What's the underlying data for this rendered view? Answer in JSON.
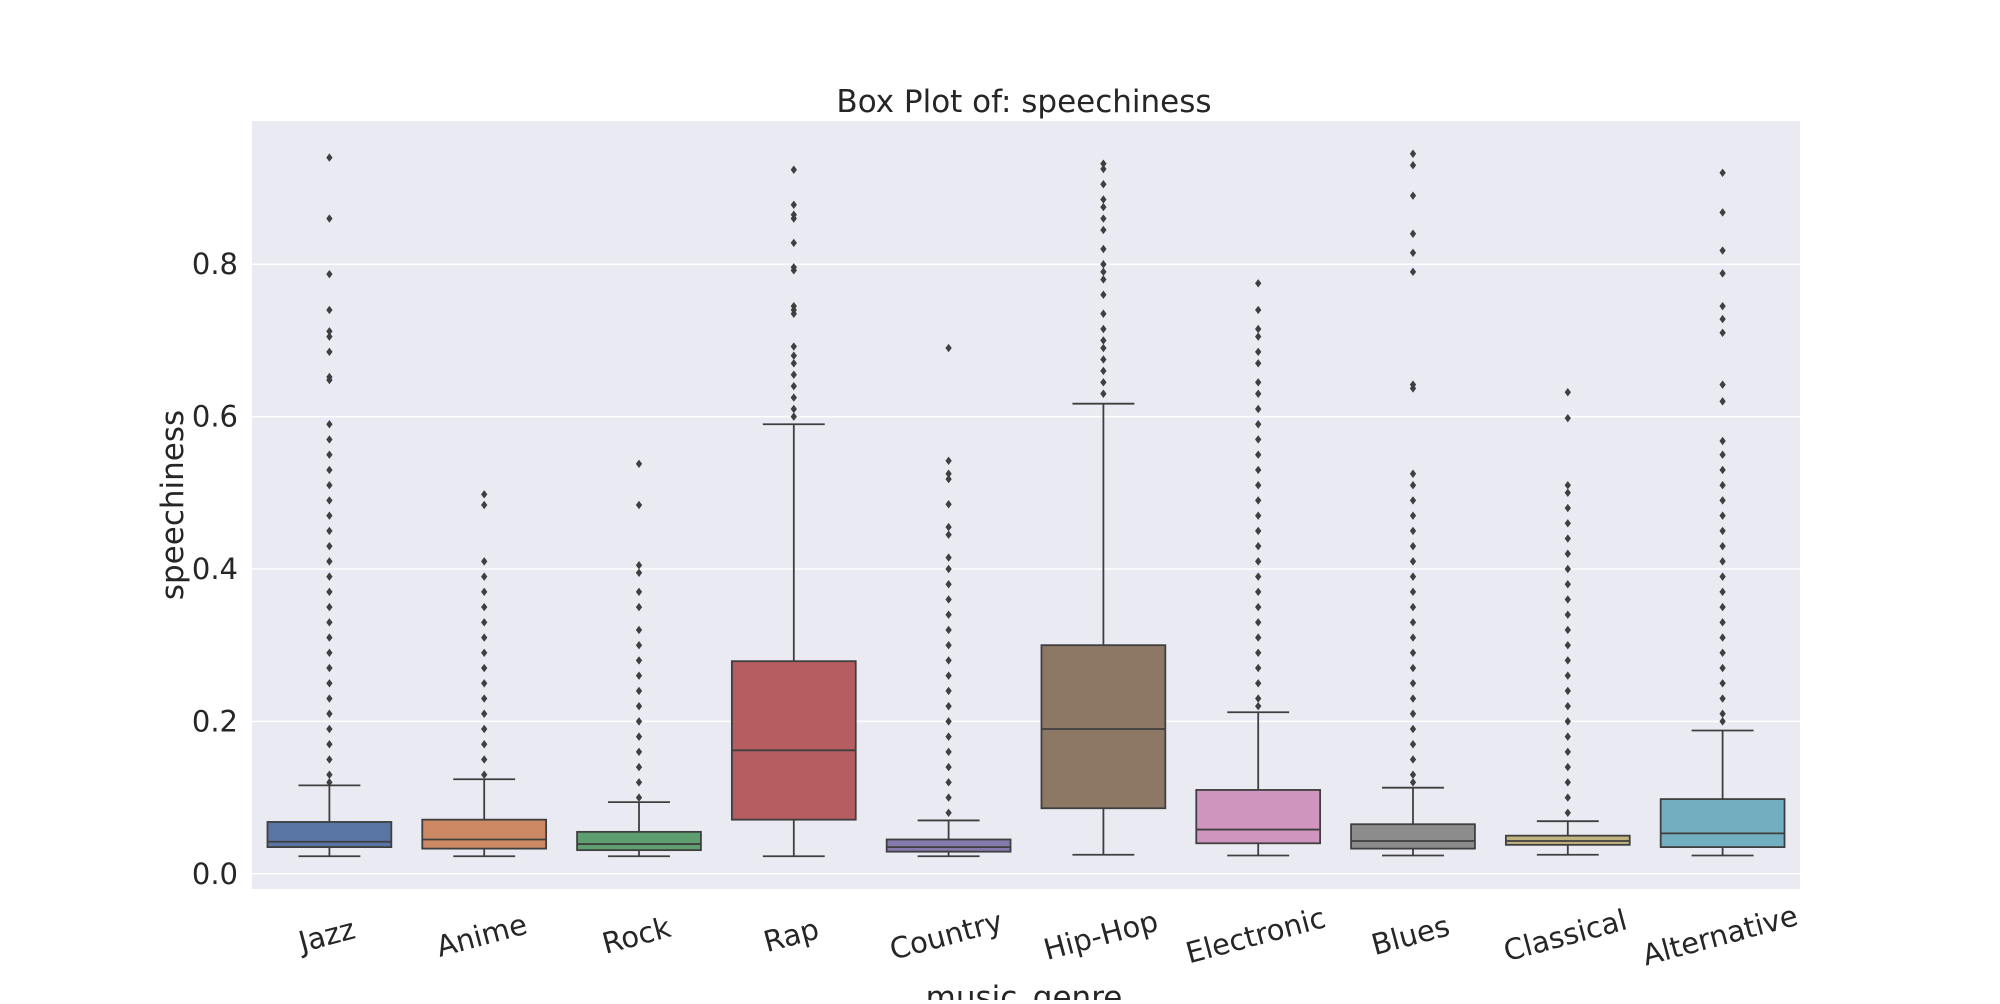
{
  "chart_data": {
    "type": "box",
    "title": "Box Plot of: speechiness",
    "xlabel": "music_genre",
    "ylabel": "speechiness",
    "ylim": [
      -0.02,
      0.988
    ],
    "yticks": [
      0.0,
      0.2,
      0.4,
      0.6,
      0.8
    ],
    "ytick_labels": [
      "0.0",
      "0.2",
      "0.4",
      "0.6",
      "0.8"
    ],
    "grid": true,
    "categories": [
      "Jazz",
      "Anime",
      "Rock",
      "Rap",
      "Country",
      "Hip-Hop",
      "Electronic",
      "Blues",
      "Classical",
      "Alternative"
    ],
    "colors": [
      "#5975a4",
      "#cc8963",
      "#5f9e6e",
      "#b55d60",
      "#857aab",
      "#8d7866",
      "#d095bf",
      "#8c8c8c",
      "#c1b37f",
      "#71aec0"
    ],
    "boxes": [
      {
        "min": 0.023,
        "q1": 0.035,
        "median": 0.042,
        "q3": 0.068,
        "max": 0.116,
        "outliers": [
          0.94,
          0.86,
          0.787,
          0.74,
          0.712,
          0.705,
          0.685,
          0.652,
          0.648,
          0.59,
          0.57,
          0.55,
          0.53,
          0.51,
          0.49,
          0.47,
          0.45,
          0.43,
          0.41,
          0.39,
          0.37,
          0.35,
          0.33,
          0.31,
          0.29,
          0.27,
          0.25,
          0.23,
          0.21,
          0.19,
          0.17,
          0.15,
          0.13,
          0.12
        ]
      },
      {
        "min": 0.023,
        "q1": 0.033,
        "median": 0.045,
        "q3": 0.071,
        "max": 0.124,
        "outliers": [
          0.498,
          0.484,
          0.41,
          0.39,
          0.37,
          0.35,
          0.33,
          0.31,
          0.29,
          0.27,
          0.25,
          0.23,
          0.21,
          0.19,
          0.17,
          0.15,
          0.13
        ]
      },
      {
        "min": 0.023,
        "q1": 0.031,
        "median": 0.039,
        "q3": 0.055,
        "max": 0.094,
        "outliers": [
          0.538,
          0.484,
          0.405,
          0.395,
          0.37,
          0.35,
          0.32,
          0.3,
          0.28,
          0.26,
          0.24,
          0.22,
          0.2,
          0.18,
          0.16,
          0.14,
          0.12,
          0.1
        ]
      },
      {
        "min": 0.023,
        "q1": 0.071,
        "median": 0.162,
        "q3": 0.279,
        "max": 0.59,
        "outliers": [
          0.924,
          0.878,
          0.865,
          0.86,
          0.828,
          0.796,
          0.792,
          0.745,
          0.74,
          0.735,
          0.692,
          0.68,
          0.67,
          0.655,
          0.64,
          0.625,
          0.61,
          0.6
        ]
      },
      {
        "min": 0.023,
        "q1": 0.029,
        "median": 0.035,
        "q3": 0.045,
        "max": 0.07,
        "outliers": [
          0.69,
          0.542,
          0.525,
          0.518,
          0.485,
          0.455,
          0.445,
          0.415,
          0.4,
          0.38,
          0.36,
          0.34,
          0.32,
          0.3,
          0.28,
          0.26,
          0.24,
          0.22,
          0.2,
          0.18,
          0.16,
          0.14,
          0.12,
          0.1,
          0.08
        ]
      },
      {
        "min": 0.025,
        "q1": 0.086,
        "median": 0.19,
        "q3": 0.3,
        "max": 0.617,
        "outliers": [
          0.932,
          0.925,
          0.905,
          0.885,
          0.875,
          0.86,
          0.845,
          0.82,
          0.8,
          0.79,
          0.78,
          0.76,
          0.735,
          0.715,
          0.7,
          0.69,
          0.675,
          0.66,
          0.645,
          0.63
        ]
      },
      {
        "min": 0.024,
        "q1": 0.04,
        "median": 0.058,
        "q3": 0.11,
        "max": 0.212,
        "outliers": [
          0.775,
          0.74,
          0.715,
          0.705,
          0.685,
          0.67,
          0.645,
          0.63,
          0.61,
          0.59,
          0.57,
          0.55,
          0.53,
          0.51,
          0.49,
          0.47,
          0.45,
          0.43,
          0.41,
          0.39,
          0.37,
          0.35,
          0.33,
          0.31,
          0.29,
          0.27,
          0.25,
          0.23,
          0.22
        ]
      },
      {
        "min": 0.024,
        "q1": 0.033,
        "median": 0.043,
        "q3": 0.065,
        "max": 0.113,
        "outliers": [
          0.945,
          0.93,
          0.89,
          0.84,
          0.815,
          0.79,
          0.642,
          0.637,
          0.525,
          0.51,
          0.49,
          0.47,
          0.45,
          0.43,
          0.41,
          0.39,
          0.37,
          0.35,
          0.33,
          0.31,
          0.29,
          0.27,
          0.25,
          0.23,
          0.21,
          0.19,
          0.17,
          0.15,
          0.13,
          0.12
        ]
      },
      {
        "min": 0.025,
        "q1": 0.038,
        "median": 0.043,
        "q3": 0.05,
        "max": 0.069,
        "outliers": [
          0.632,
          0.598,
          0.51,
          0.5,
          0.48,
          0.46,
          0.44,
          0.42,
          0.4,
          0.38,
          0.36,
          0.34,
          0.32,
          0.3,
          0.28,
          0.26,
          0.24,
          0.22,
          0.2,
          0.18,
          0.16,
          0.14,
          0.12,
          0.1,
          0.08
        ]
      },
      {
        "min": 0.024,
        "q1": 0.035,
        "median": 0.053,
        "q3": 0.098,
        "max": 0.188,
        "outliers": [
          0.92,
          0.868,
          0.818,
          0.788,
          0.745,
          0.728,
          0.71,
          0.642,
          0.62,
          0.568,
          0.55,
          0.53,
          0.51,
          0.49,
          0.47,
          0.45,
          0.43,
          0.41,
          0.39,
          0.37,
          0.35,
          0.33,
          0.31,
          0.29,
          0.27,
          0.25,
          0.23,
          0.21,
          0.2
        ]
      }
    ]
  }
}
